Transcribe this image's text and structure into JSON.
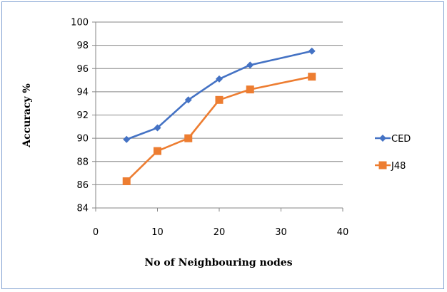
{
  "chart_data": {
    "type": "line",
    "title": "",
    "xlabel": "No of Neighbouring nodes",
    "ylabel": "Accuracy %",
    "xlim": [
      0,
      40
    ],
    "ylim": [
      84,
      100
    ],
    "xticks": [
      0,
      10,
      20,
      30,
      40
    ],
    "yticks": [
      84,
      86,
      88,
      90,
      92,
      94,
      96,
      98,
      100
    ],
    "grid": "horizontal",
    "legend_position": "right",
    "series": [
      {
        "name": "CED",
        "color": "#4472c4",
        "marker": "diamond",
        "x": [
          5,
          10,
          15,
          20,
          25,
          35
        ],
        "y": [
          89.9,
          90.9,
          93.3,
          95.1,
          96.3,
          97.5
        ]
      },
      {
        "name": "J48",
        "color": "#ed7d31",
        "marker": "square",
        "x": [
          5,
          10,
          15,
          20,
          25,
          35
        ],
        "y": [
          86.3,
          88.9,
          90.0,
          93.3,
          94.2,
          95.3
        ]
      }
    ]
  }
}
